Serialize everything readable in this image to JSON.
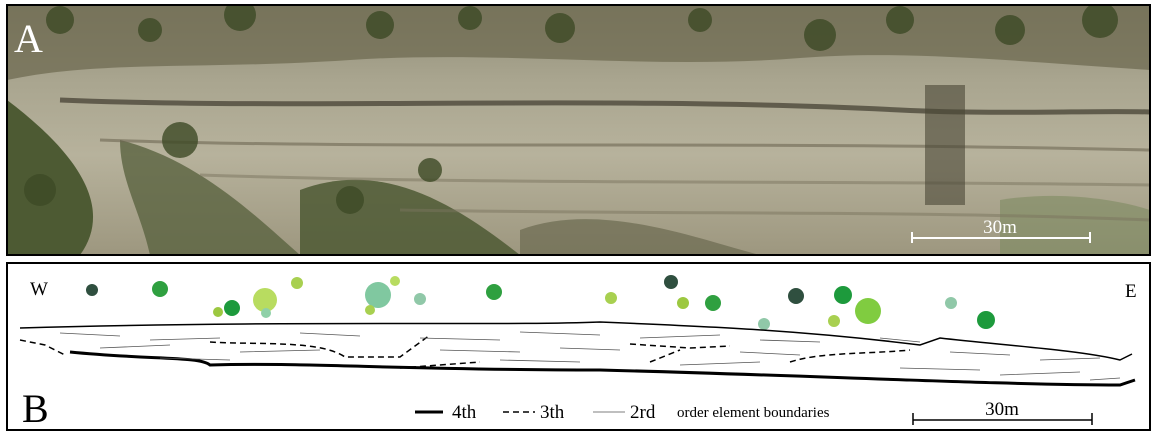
{
  "panel_a": {
    "label": "A",
    "scale_bar": "30m"
  },
  "panel_b": {
    "label": "B",
    "west": "W",
    "east": "E",
    "legend": {
      "items": [
        "4th",
        "3th",
        "2rd"
      ],
      "caption": "order element boundaries"
    },
    "scale_bar": "30m"
  }
}
